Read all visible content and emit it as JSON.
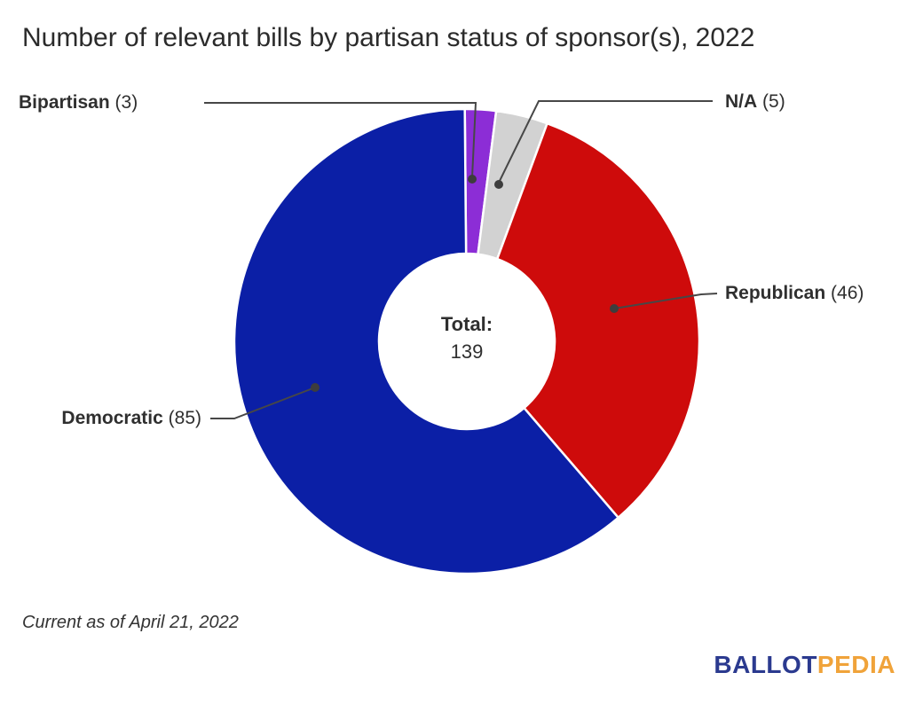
{
  "title": "Number of relevant bills by partisan status of sponsor(s), 2022",
  "footnote": "Current as of April 21, 2022",
  "center_label": {
    "line1": "Total:",
    "line2": "139"
  },
  "logo": {
    "blue_text": "BALLOT",
    "orange_text": "PEDIA",
    "blue_color": "#2b3a8f",
    "orange_color": "#f0a33a"
  },
  "chart_data": {
    "type": "pie",
    "subtype": "donut",
    "title": "Number of relevant bills by partisan status of sponsor(s), 2022",
    "total": 139,
    "start_angle_deg": -0.5,
    "direction": "clockwise",
    "legend_position": "callout-labels",
    "slices": [
      {
        "label": "Bipartisan",
        "value": 3,
        "count_label": "(3)",
        "color": "#8c2dd6"
      },
      {
        "label": "N/A",
        "value": 5,
        "count_label": "(5)",
        "color": "#d2d2d2"
      },
      {
        "label": "Republican",
        "value": 46,
        "count_label": "(46)",
        "color": "#ce0b0b"
      },
      {
        "label": "Democratic",
        "value": 85,
        "count_label": "(85)",
        "color": "#0b1fa6"
      }
    ]
  }
}
